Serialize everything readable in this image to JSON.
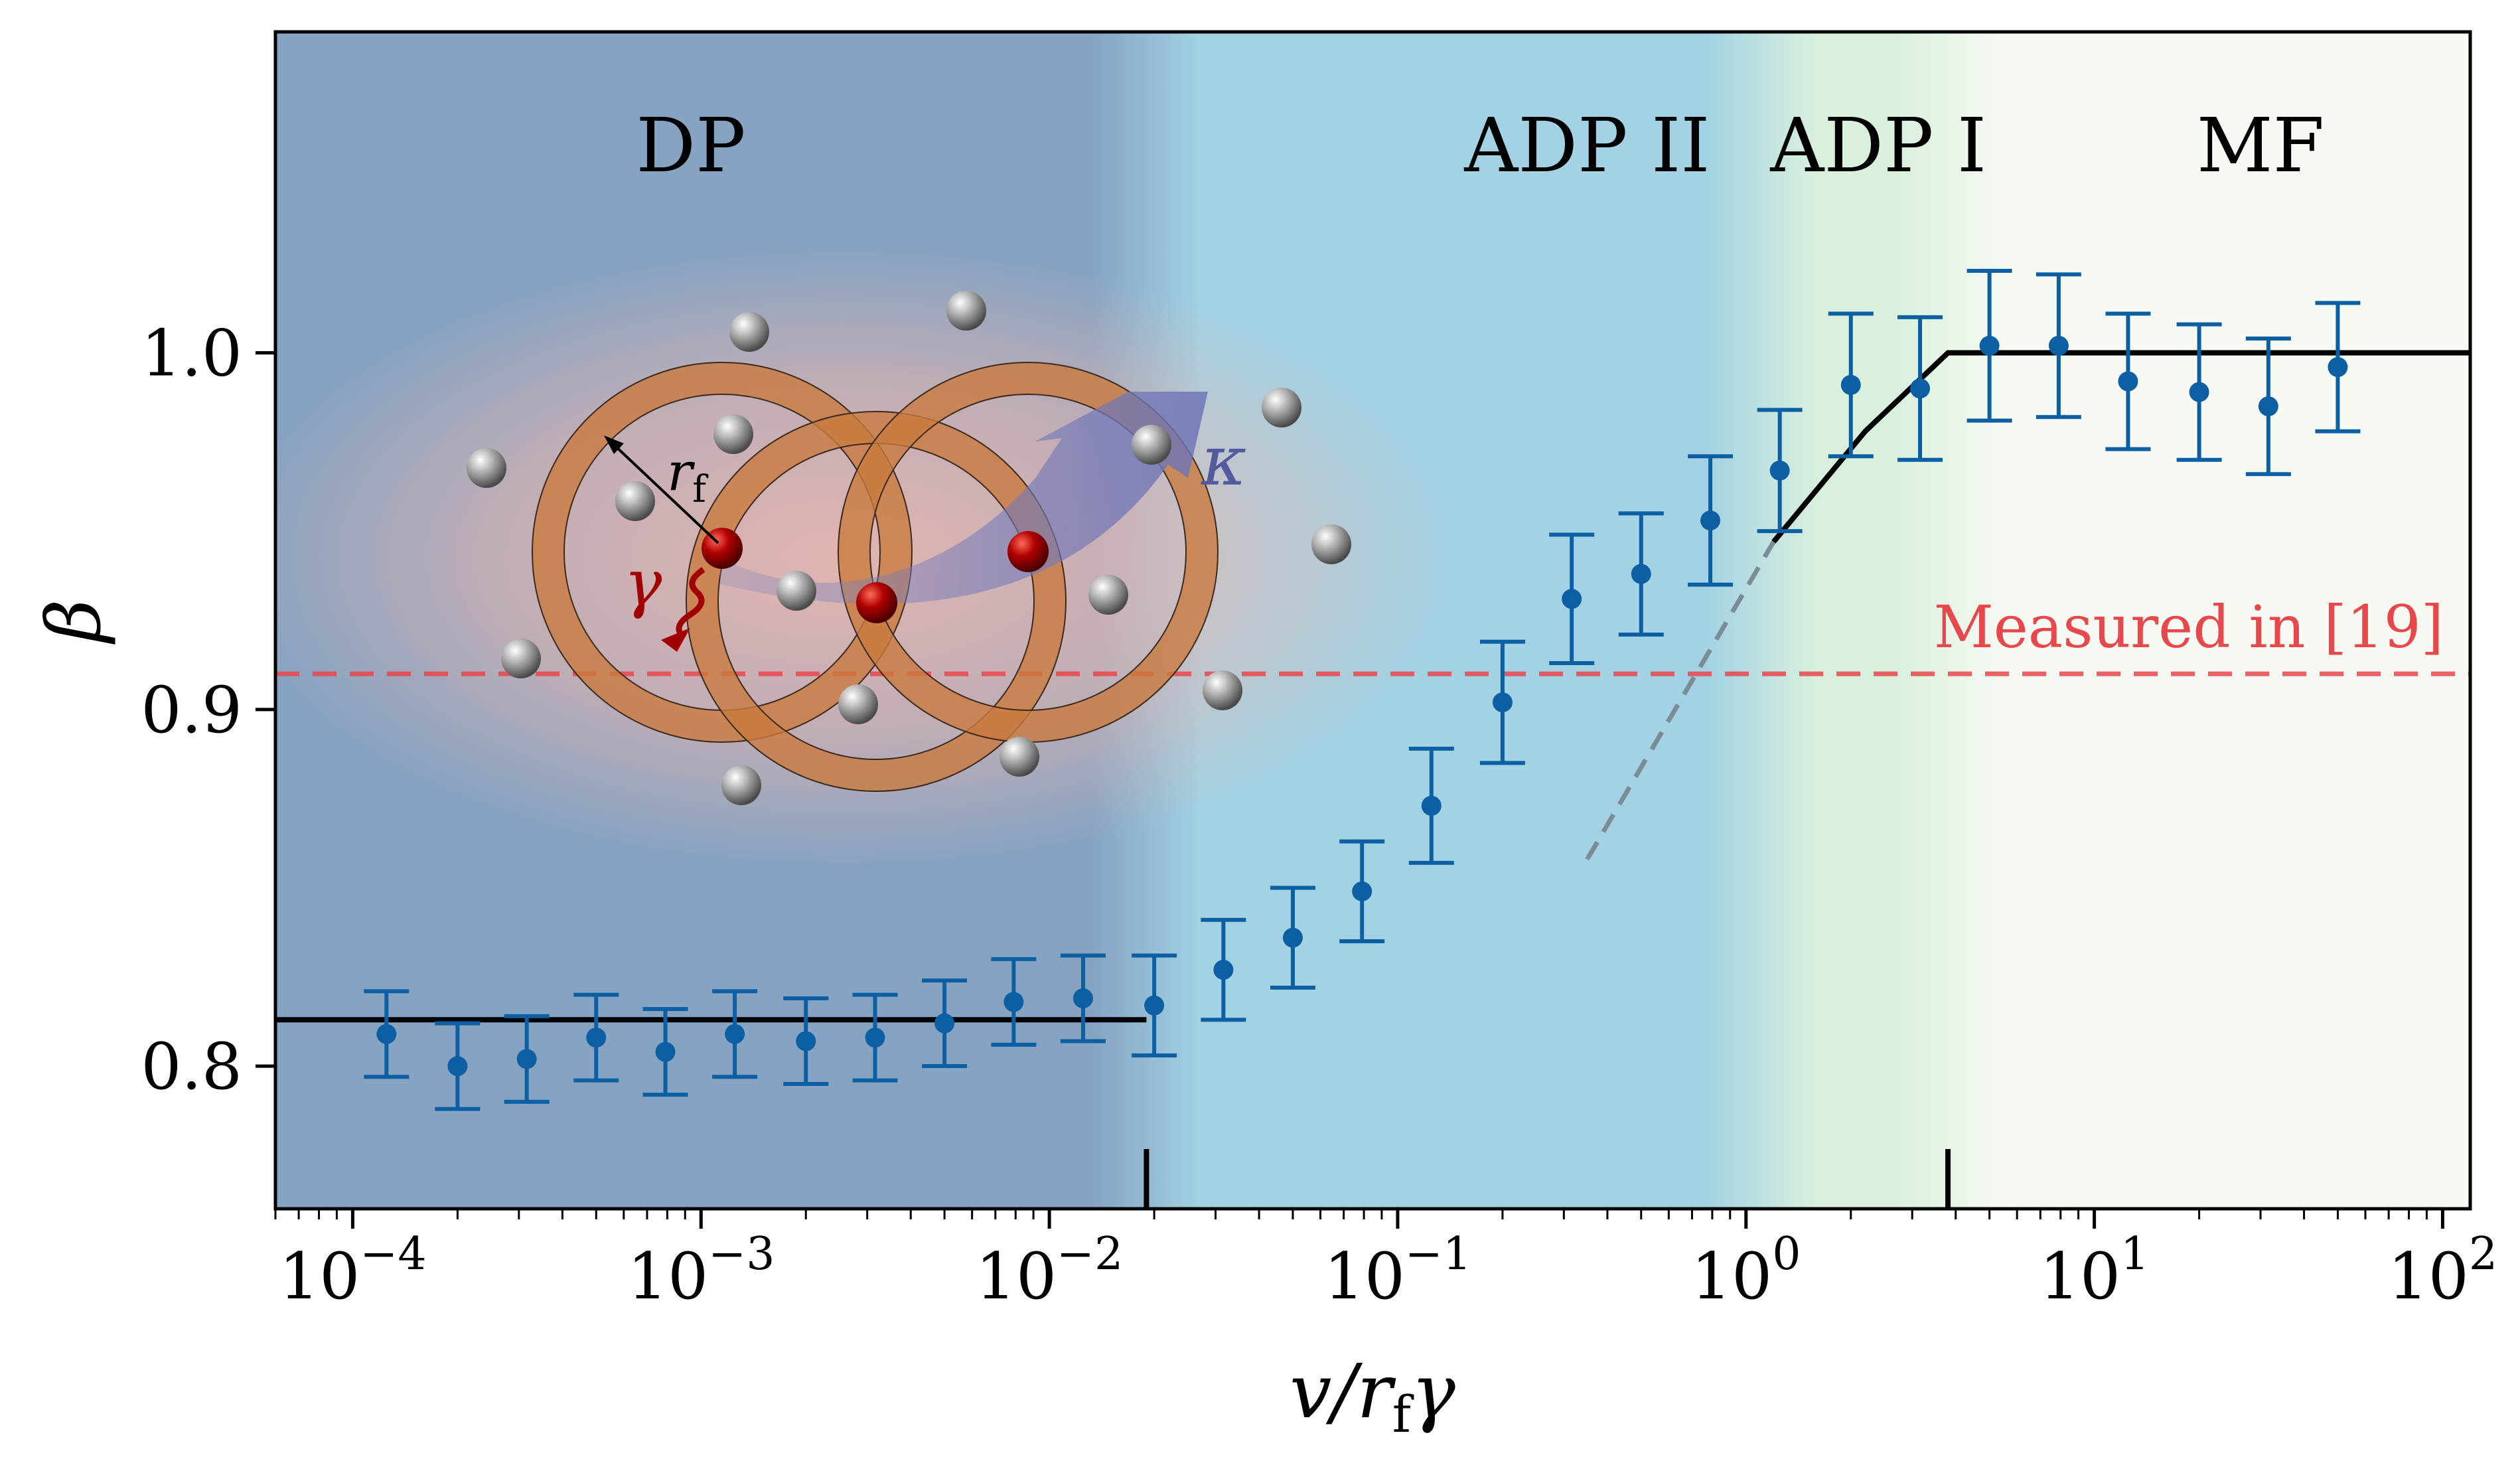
{
  "chart_data": {
    "type": "scatter",
    "xscale": "log",
    "xlim": [
      6e-05,
      120
    ],
    "ylim": [
      0.76,
      1.09
    ],
    "xlabel": "v/r_fγ",
    "ylabel": "β",
    "xlabel_parts": {
      "v": "v/",
      "r": "r",
      "sub": "f",
      "g": "γ"
    },
    "x_ticks": [
      {
        "value": 0.0001,
        "base": "10",
        "exp": "−4"
      },
      {
        "value": 0.001,
        "base": "10",
        "exp": "−3"
      },
      {
        "value": 0.01,
        "base": "10",
        "exp": "−2"
      },
      {
        "value": 0.1,
        "base": "10",
        "exp": "−1"
      },
      {
        "value": 1,
        "base": "10",
        "exp": "0"
      },
      {
        "value": 10,
        "base": "10",
        "exp": "1"
      },
      {
        "value": 100,
        "base": "10",
        "exp": "2"
      }
    ],
    "y_ticks": [
      {
        "value": 0.8,
        "label": "0.8"
      },
      {
        "value": 0.9,
        "label": "0.9"
      },
      {
        "value": 1.0,
        "label": "1.0"
      }
    ],
    "regions": [
      {
        "label": "DP",
        "x_from": 6e-05,
        "x_to": 0.019,
        "color": "#86a3c2"
      },
      {
        "label": "ADP II",
        "x_from": 0.019,
        "x_to": 1.1,
        "color": "#a2d2e4"
      },
      {
        "label": "ADP I",
        "x_from": 1.1,
        "x_to": 3.8,
        "color": "#d9f0dd"
      },
      {
        "label": "MF",
        "x_from": 3.8,
        "x_to": 120,
        "color": "#f6faf3"
      }
    ],
    "region_boundaries": [
      0.019,
      3.8
    ],
    "reference_line": {
      "y": 0.91,
      "label": "Measured in [19]",
      "color": "#e8474b"
    },
    "series": [
      {
        "color": "#0d5fa3",
        "points": [
          {
            "x": 0.000125,
            "y": 0.809,
            "err": 0.012
          },
          {
            "x": 0.0002,
            "y": 0.8,
            "err": 0.012
          },
          {
            "x": 0.000316,
            "y": 0.802,
            "err": 0.012
          },
          {
            "x": 0.0005,
            "y": 0.808,
            "err": 0.012
          },
          {
            "x": 0.00079,
            "y": 0.804,
            "err": 0.012
          },
          {
            "x": 0.00125,
            "y": 0.809,
            "err": 0.012
          },
          {
            "x": 0.002,
            "y": 0.807,
            "err": 0.012
          },
          {
            "x": 0.00316,
            "y": 0.808,
            "err": 0.012
          },
          {
            "x": 0.005,
            "y": 0.812,
            "err": 0.012
          },
          {
            "x": 0.0079,
            "y": 0.818,
            "err": 0.012
          },
          {
            "x": 0.0125,
            "y": 0.819,
            "err": 0.012
          },
          {
            "x": 0.02,
            "y": 0.817,
            "err": 0.014
          },
          {
            "x": 0.0316,
            "y": 0.827,
            "err": 0.014
          },
          {
            "x": 0.05,
            "y": 0.836,
            "err": 0.014
          },
          {
            "x": 0.079,
            "y": 0.849,
            "err": 0.014
          },
          {
            "x": 0.125,
            "y": 0.873,
            "err": 0.016
          },
          {
            "x": 0.2,
            "y": 0.902,
            "err": 0.017
          },
          {
            "x": 0.316,
            "y": 0.931,
            "err": 0.018
          },
          {
            "x": 0.5,
            "y": 0.938,
            "err": 0.017
          },
          {
            "x": 0.79,
            "y": 0.953,
            "err": 0.018
          },
          {
            "x": 1.25,
            "y": 0.967,
            "err": 0.017
          },
          {
            "x": 2.0,
            "y": 0.991,
            "err": 0.02
          },
          {
            "x": 3.16,
            "y": 0.99,
            "err": 0.02
          },
          {
            "x": 5.0,
            "y": 1.002,
            "err": 0.021
          },
          {
            "x": 7.9,
            "y": 1.002,
            "err": 0.02
          },
          {
            "x": 12.5,
            "y": 0.992,
            "err": 0.019
          },
          {
            "x": 20,
            "y": 0.989,
            "err": 0.019
          },
          {
            "x": 31.6,
            "y": 0.985,
            "err": 0.019
          },
          {
            "x": 50,
            "y": 0.996,
            "err": 0.018
          }
        ]
      }
    ],
    "fit_lines": [
      {
        "style": "solid",
        "color": "#000000",
        "points": [
          [
            6e-05,
            0.813
          ],
          [
            0.019,
            0.813
          ]
        ]
      },
      {
        "style": "solid",
        "color": "#000000",
        "points": [
          [
            1.2,
            0.947
          ],
          [
            2.2,
            0.978
          ],
          [
            3.8,
            1.0
          ],
          [
            120,
            1.0
          ]
        ]
      },
      {
        "style": "dashed",
        "color": "#7b8c96",
        "points": [
          [
            0.35,
            0.858
          ],
          [
            1.2,
            0.947
          ]
        ]
      }
    ],
    "inset": {
      "labels": {
        "radius": "r",
        "radius_sub": "f",
        "rate": "γ",
        "flow": "κ"
      }
    }
  }
}
